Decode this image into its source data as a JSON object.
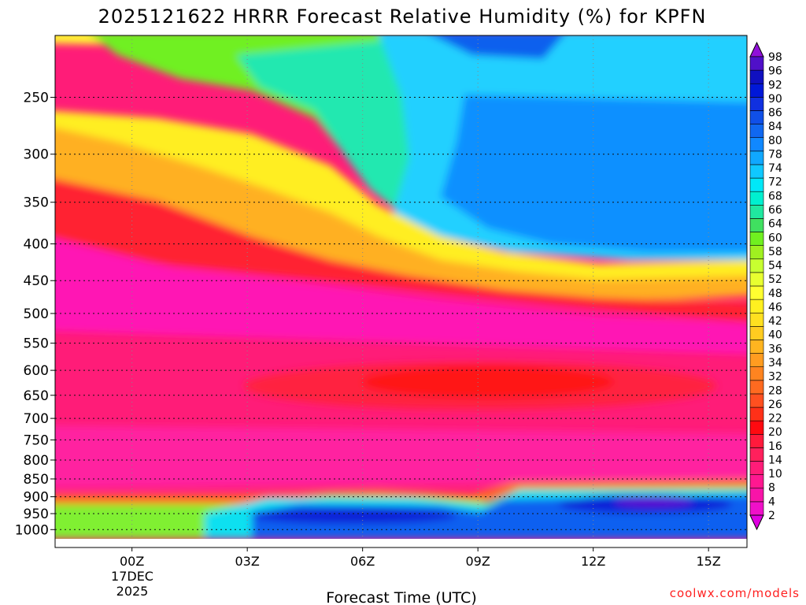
{
  "chart_data": {
    "type": "heatmap",
    "title": "2025121622 HRRR Forecast Relative Humidity (%) for KPFN",
    "xlabel": "Forecast Time (UTC)",
    "ylabel": "",
    "x_ticks": [
      "00Z",
      "03Z",
      "06Z",
      "09Z",
      "12Z",
      "15Z"
    ],
    "x_date_line1": "17DEC",
    "x_date_line2": "2025",
    "y_ticks": [
      "250",
      "300",
      "350",
      "400",
      "450",
      "500",
      "550",
      "600",
      "650",
      "700",
      "750",
      "800",
      "850",
      "900",
      "950",
      "1000"
    ],
    "y_scale": "log",
    "y_inverted": true,
    "x_range_hours": [
      -2,
      16
    ],
    "y_range_hpa": [
      205,
      1030
    ],
    "colorbar_levels": [
      2,
      4,
      8,
      10,
      14,
      16,
      20,
      22,
      26,
      28,
      32,
      34,
      36,
      40,
      42,
      46,
      48,
      52,
      54,
      58,
      60,
      64,
      66,
      68,
      72,
      74,
      78,
      80,
      84,
      86,
      90,
      92,
      96,
      98
    ],
    "colorbar_colors": [
      "#e000e0",
      "#f010c8",
      "#f814a8",
      "#ff1890",
      "#ff1c78",
      "#ff205c",
      "#ff1a3c",
      "#ff0a10",
      "#ff3018",
      "#ff5020",
      "#ff6a20",
      "#ff8420",
      "#ff9c20",
      "#ffb420",
      "#ffcc20",
      "#ffe020",
      "#fff020",
      "#ffff30",
      "#e8ff30",
      "#c8ff30",
      "#a0f020",
      "#70f020",
      "#40e060",
      "#20e8a0",
      "#00f0d0",
      "#00e8f8",
      "#10c8ff",
      "#10a8ff",
      "#1088ff",
      "#1068f0",
      "#1050e8",
      "#1030e0",
      "#0018d8",
      "#1010c0",
      "#5010c8",
      "#9010d8"
    ],
    "grid": true,
    "legend_placement": "right colorbar",
    "annotation": "coolwx.com/models"
  }
}
